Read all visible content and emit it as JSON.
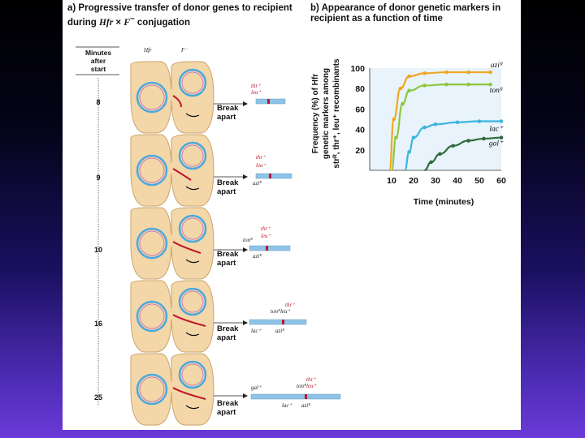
{
  "panel_a": {
    "title_part1": "a) Progressive transfer of donor genes to recipient during",
    "title_hfr": "Hfr",
    "title_times": " × ",
    "title_fminus": "F",
    "title_sup": "−",
    "title_part2": "conjugation",
    "minutes_header": [
      "Minutes",
      "after",
      "start"
    ],
    "col_hfr": "Hfr",
    "col_fminus": "F⁻",
    "break_label": [
      "Break",
      "apart"
    ],
    "minute_marks": [
      "8",
      "9",
      "10",
      "16",
      "25"
    ]
  },
  "panel_b": {
    "title": "b) Appearance of donor genetic markers in recipient as a function of time",
    "ylabel_line1": "Frequency (%) of Hfr",
    "ylabel_line2": "genetic markers among",
    "ylabel_line3": "strᴿ, thr⁺, leu⁺ recombinants"
  },
  "colors": {
    "cell_fill": "#f3d7a8",
    "cell_stroke": "#caa36a",
    "chromosome": "#4aa8e0",
    "donor_strand": "#c0142a",
    "curve_azi": "#f2a623",
    "curve_ton": "#8cc83c",
    "curve_lac": "#3cb4e0",
    "curve_gal": "#2e6b3c"
  },
  "chart_data": {
    "type": "line",
    "xlabel": "Time (minutes)",
    "ylabel": "",
    "xlim": [
      0,
      60
    ],
    "ylim": [
      0,
      100
    ],
    "x_ticks": [
      "10",
      "20",
      "30",
      "40",
      "50",
      "60"
    ],
    "y_ticks": [
      "20",
      "40",
      "60",
      "80",
      "100"
    ],
    "series": [
      {
        "name": "aziᴿ",
        "color": "#f2a623",
        "x": [
          9,
          11,
          14,
          18,
          25,
          35,
          45,
          55
        ],
        "y": [
          0,
          50,
          80,
          92,
          95,
          96,
          96,
          96
        ]
      },
      {
        "name": "tonᴿ",
        "color": "#8cc83c",
        "x": [
          10,
          12,
          15,
          18,
          25,
          35,
          45,
          55
        ],
        "y": [
          0,
          32,
          65,
          78,
          83,
          84,
          84,
          84
        ]
      },
      {
        "name": "lac⁺",
        "color": "#3cb4e0",
        "x": [
          16,
          18,
          20,
          25,
          30,
          40,
          50,
          60
        ],
        "y": [
          0,
          18,
          32,
          42,
          45,
          47,
          48,
          48
        ]
      },
      {
        "name": "gal⁺",
        "color": "#2e6b3c",
        "x": [
          25,
          28,
          32,
          38,
          45,
          52,
          60
        ],
        "y": [
          0,
          8,
          16,
          24,
          29,
          31,
          32
        ]
      }
    ]
  }
}
